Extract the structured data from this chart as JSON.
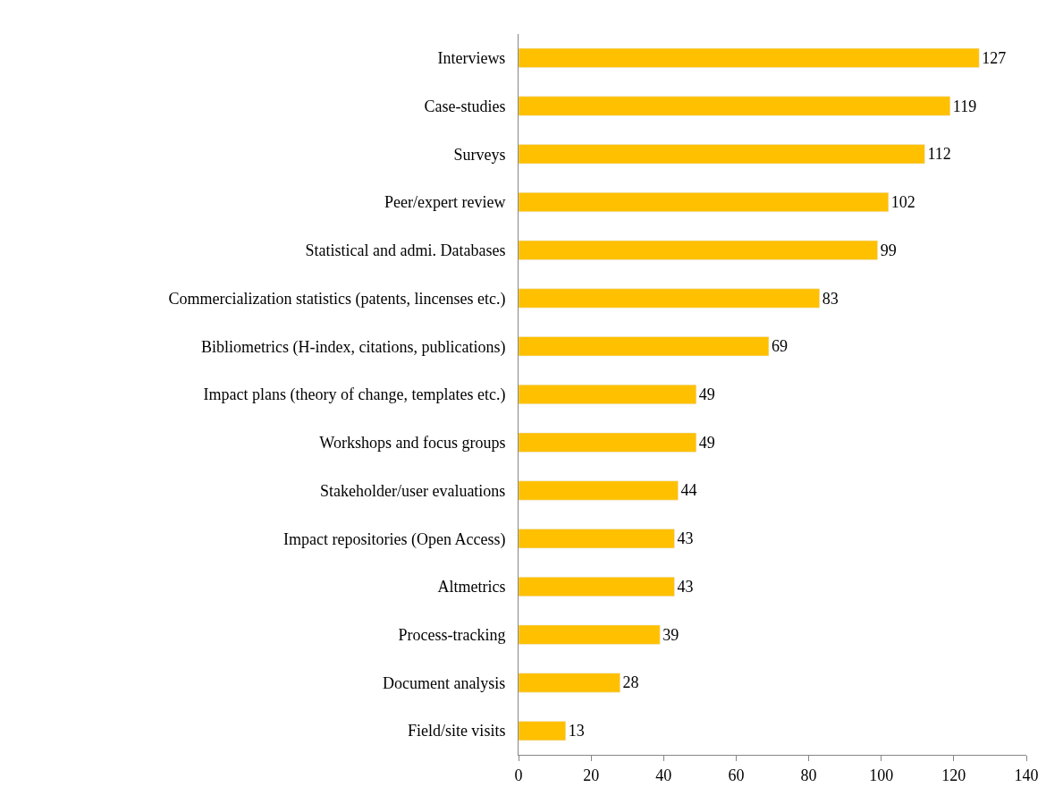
{
  "chart_data": {
    "type": "bar",
    "orientation": "horizontal",
    "categories": [
      "Interviews",
      "Case-studies",
      "Surveys",
      "Peer/expert review",
      "Statistical and admi. Databases",
      "Commercialization statistics (patents, lincenses etc.)",
      "Bibliometrics (H-index, citations, publications)",
      "Impact plans (theory of change, templates etc.)",
      "Workshops and focus groups",
      "Stakeholder/user evaluations",
      "Impact repositories (Open Access)",
      "Altmetrics",
      "Process-tracking",
      "Document analysis",
      "Field/site visits"
    ],
    "values": [
      127,
      119,
      112,
      102,
      99,
      83,
      69,
      49,
      49,
      44,
      43,
      43,
      39,
      28,
      13
    ],
    "color": "#ffc000",
    "xlim": [
      0,
      140
    ],
    "xticks": [
      0,
      20,
      40,
      60,
      80,
      100,
      120,
      140
    ],
    "data_labels": true
  }
}
